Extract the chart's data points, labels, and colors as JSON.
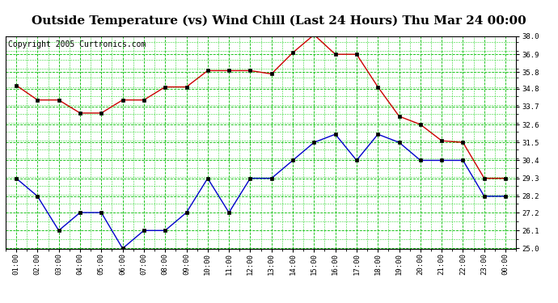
{
  "title": "Outside Temperature (vs) Wind Chill (Last 24 Hours) Thu Mar 24 00:00",
  "copyright": "Copyright 2005 Curtronics.com",
  "x_labels": [
    "01:00",
    "02:00",
    "03:00",
    "04:00",
    "05:00",
    "06:00",
    "07:00",
    "08:00",
    "09:00",
    "10:00",
    "11:00",
    "12:00",
    "13:00",
    "14:00",
    "15:00",
    "16:00",
    "17:00",
    "18:00",
    "19:00",
    "20:00",
    "21:00",
    "22:00",
    "23:00",
    "00:00"
  ],
  "red_data": [
    35.0,
    34.1,
    34.1,
    33.3,
    33.3,
    34.1,
    34.1,
    34.9,
    34.9,
    35.9,
    35.9,
    35.9,
    35.7,
    37.0,
    38.1,
    36.9,
    36.9,
    34.9,
    33.1,
    32.6,
    31.6,
    31.5,
    29.3,
    29.3
  ],
  "blue_data": [
    29.3,
    28.2,
    26.1,
    27.2,
    27.2,
    25.0,
    26.1,
    26.1,
    27.2,
    29.3,
    27.2,
    29.3,
    29.3,
    30.4,
    31.5,
    32.0,
    30.4,
    32.0,
    31.5,
    30.4,
    30.4,
    30.4,
    28.2,
    28.2
  ],
  "ylim": [
    25.0,
    38.0
  ],
  "yticks": [
    25.0,
    26.1,
    27.2,
    28.2,
    29.3,
    30.4,
    31.5,
    32.6,
    33.7,
    34.8,
    35.8,
    36.9,
    38.0
  ],
  "bg_color": "#ffffff",
  "plot_bg_color": "#ffffff",
  "grid_color": "#00bb00",
  "grid_color_minor": "#00cc00",
  "red_line_color": "#cc0000",
  "blue_line_color": "#0000cc",
  "title_fontsize": 11,
  "copyright_fontsize": 7
}
